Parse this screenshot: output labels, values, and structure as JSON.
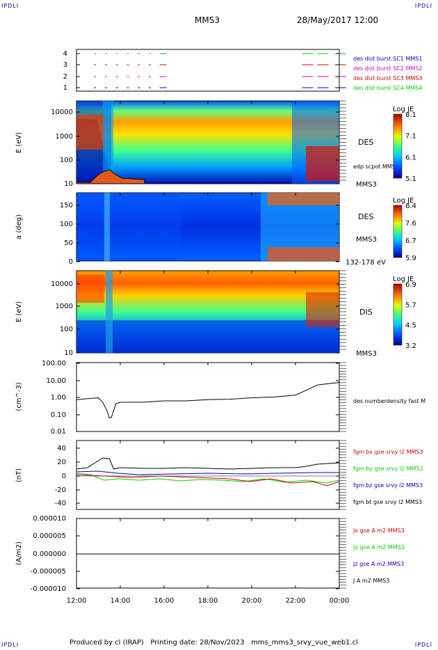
{
  "corners": {
    "tl": "IPDLI",
    "tr": "IPDLI",
    "bl": "IPDLI",
    "br": "IPDLI"
  },
  "header": {
    "spacecraft": "MMS3",
    "datetime": "28/May/2017 12:00"
  },
  "footer": {
    "produced_by": "Produced by cl (IRAP)",
    "printing_date": "Printing date: 28/Nov/2023",
    "filename": "mms_mms3_srvy_vue_web1.cl"
  },
  "time_axis": {
    "ticks": [
      "12:00",
      "14:00",
      "16:00",
      "18:00",
      "20:00",
      "22:00",
      "00:00"
    ]
  },
  "colors": {
    "blue": "#0000cc",
    "magenta": "#cc00cc",
    "red": "#cc0000",
    "green": "#00cc00",
    "black": "#000000"
  },
  "panels": {
    "burst": {
      "yticks": [
        "4",
        "3",
        "2",
        "1"
      ],
      "legend": [
        {
          "text": "des dist burst SC1 MMS1",
          "color": "#0000cc"
        },
        {
          "text": "des dist burst SC2 MMS2",
          "color": "#cc00cc"
        },
        {
          "text": "des dist burst SC3 MMS3",
          "color": "#cc0000"
        },
        {
          "text": "des dist burst SC4 MMS4",
          "color": "#00cc00"
        }
      ]
    },
    "des_energy": {
      "ylabel": "E (eV)",
      "yticks": [
        "10000",
        "1000",
        "100",
        "10"
      ],
      "label": "DES",
      "sublabel": "MMS3",
      "overlay": "edp scpot MMS3",
      "cbar_title": "Log JE",
      "cbar_ticks": [
        "8.1",
        "7.1",
        "6.1",
        "5.1"
      ]
    },
    "des_pitch": {
      "ylabel": "a (deg)",
      "yticks": [
        "150",
        "100",
        "50",
        "0"
      ],
      "label": "DES",
      "sublabel": "MMS3",
      "range": "132-178 eV",
      "cbar_title": "Log JE",
      "cbar_ticks": [
        "8.4",
        "7.6",
        "6.7",
        "5.9"
      ]
    },
    "dis_energy": {
      "ylabel": "E (eV)",
      "yticks": [
        "10000",
        "1000",
        "100",
        "10"
      ],
      "label": "DIS",
      "sublabel": "MMS3",
      "cbar_title": "Log JE",
      "cbar_ticks": [
        "6.9",
        "5.7",
        "4.5",
        "3.2"
      ]
    },
    "density": {
      "ylabel": "(cm^-3)",
      "yticks": [
        "100.00",
        "10.00",
        "1.00",
        "0.10",
        "0.01"
      ],
      "legend": "des numberdensity fast M"
    },
    "bfield": {
      "ylabel": "(nT)",
      "yticks": [
        "40",
        "20",
        "0",
        "-20",
        "-40"
      ],
      "legend": [
        {
          "text": "fgm bx gse srvy l2 MMS3",
          "color": "#cc0000"
        },
        {
          "text": "fgm by gse srvy l2 MMS3",
          "color": "#00cc00"
        },
        {
          "text": "fgm bz gse srvy l2 MMS3",
          "color": "#0000cc"
        },
        {
          "text": "fgm bt gse srvy l2 MMS3",
          "color": "#000000"
        }
      ]
    },
    "current": {
      "ylabel": "(A/m2)",
      "yticks": [
        "0.000010",
        "0.000005",
        "0.000000",
        "-0.000005",
        "-0.000010"
      ],
      "legend": [
        {
          "text": "Jx gse A m2 MMS3",
          "color": "#cc0000"
        },
        {
          "text": "Jy gse A m2 MMS3",
          "color": "#00cc00"
        },
        {
          "text": "Jz gse A m2 MMS3",
          "color": "#0000cc"
        },
        {
          "text": "J A m2 MMS3",
          "color": "#000000"
        }
      ]
    }
  },
  "chart_data": [
    {
      "type": "scatter",
      "name": "burst intervals",
      "x_hours": [
        12.8,
        13.3,
        13.8,
        14.3,
        14.8,
        15.3,
        15.8,
        22.3,
        23.0,
        23.8
      ],
      "note_rows": [
        4,
        3,
        2,
        1
      ]
    },
    {
      "type": "heatmap",
      "name": "DES energy spectrogram",
      "yscale": "log",
      "ylim": [
        10,
        30000
      ],
      "zlim": [
        5.1,
        8.1
      ]
    },
    {
      "type": "heatmap",
      "name": "DES pitch angle",
      "ylim": [
        0,
        180
      ],
      "zlim": [
        5.9,
        8.4
      ]
    },
    {
      "type": "heatmap",
      "name": "DIS energy spectrogram",
      "yscale": "log",
      "ylim": [
        10,
        30000
      ],
      "zlim": [
        3.2,
        6.9
      ]
    },
    {
      "type": "line",
      "name": "density",
      "yscale": "log",
      "ylim": [
        0.01,
        100
      ],
      "x_hours": [
        12,
        12.5,
        13,
        13.2,
        13.4,
        13.5,
        13.6,
        13.8,
        14,
        15,
        16,
        17,
        18,
        19,
        20,
        21,
        22,
        22.5,
        23,
        23.5,
        24
      ],
      "values": [
        0.7,
        0.8,
        0.9,
        0.5,
        0.15,
        0.06,
        0.07,
        0.4,
        0.5,
        0.5,
        0.6,
        0.6,
        0.7,
        0.75,
        0.9,
        1.0,
        1.3,
        2.5,
        5,
        6,
        7
      ]
    },
    {
      "type": "line",
      "name": "bt",
      "ylim": [
        -50,
        50
      ],
      "x_hours": [
        12,
        12.5,
        13,
        13.2,
        13.5,
        13.7,
        14,
        15,
        16,
        17,
        18,
        19,
        20,
        21,
        22,
        22.5,
        23,
        23.5,
        24
      ],
      "values": [
        10,
        12,
        22,
        26,
        25,
        10,
        12,
        11,
        11,
        12,
        11,
        10,
        11,
        12,
        12,
        14,
        17,
        18,
        19
      ]
    },
    {
      "type": "line",
      "name": "current",
      "ylim": [
        -1e-05,
        1e-05
      ],
      "x_hours": [
        12,
        24
      ],
      "values": [
        0,
        0
      ]
    }
  ]
}
